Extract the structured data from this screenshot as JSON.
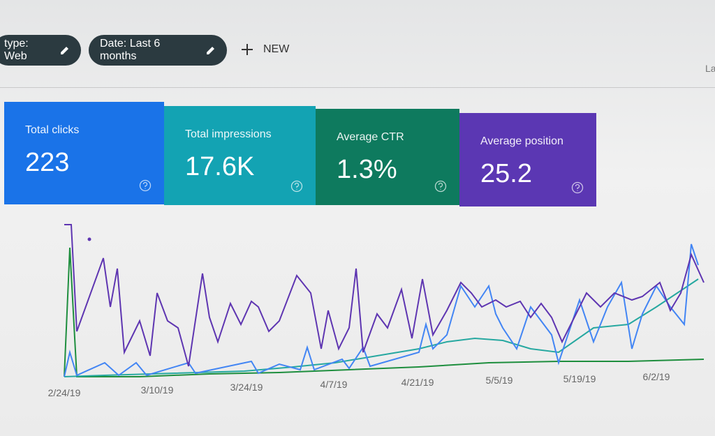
{
  "filters": [
    {
      "label": "type: Web"
    },
    {
      "label": "Date: Last 6 months"
    }
  ],
  "new_button": "NEW",
  "partial_text": "La",
  "metrics": [
    {
      "label": "Total clicks",
      "value": "223"
    },
    {
      "label": "Total impressions",
      "value": "17.6K"
    },
    {
      "label": "Average CTR",
      "value": "1.3%"
    },
    {
      "label": "Average position",
      "value": "25.2"
    }
  ],
  "chart": {
    "x_labels": [
      "2/24/19",
      "3/10/19",
      "3/24/19",
      "4/7/19",
      "4/21/19",
      "5/5/19",
      "5/19/19",
      "6/2/19"
    ]
  }
}
